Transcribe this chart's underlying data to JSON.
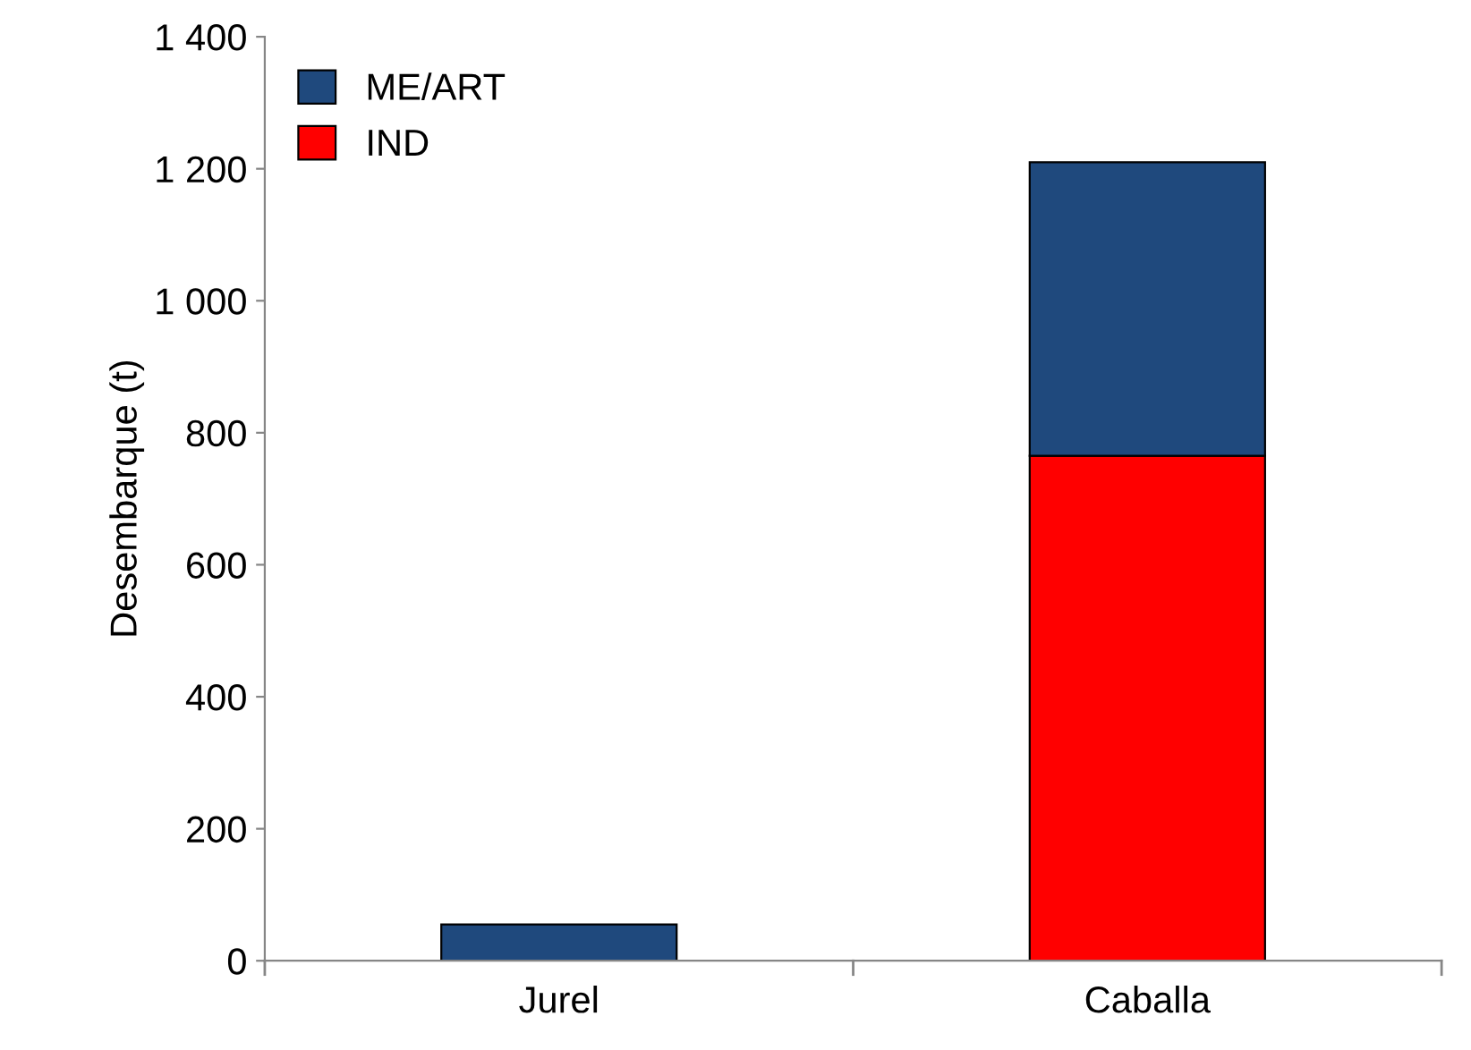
{
  "chart_data": {
    "type": "bar",
    "ylabel": "Desembarque (t)",
    "categories": [
      "Jurel",
      "Caballa"
    ],
    "stacked": true,
    "series": [
      {
        "name": "IND",
        "color": "#ff0000",
        "values": [
          0,
          765
        ]
      },
      {
        "name": "ME/ART",
        "color": "#1f497d",
        "values": [
          55,
          445
        ]
      }
    ],
    "ylim": [
      0,
      1400
    ],
    "yticks": [
      0,
      200,
      400,
      600,
      800,
      {
        "value": 1000,
        "label": "1 000"
      },
      {
        "value": 1200,
        "label": "1 200"
      },
      {
        "value": 1400,
        "label": "1 400"
      }
    ],
    "grid": false,
    "legend": "top left"
  }
}
